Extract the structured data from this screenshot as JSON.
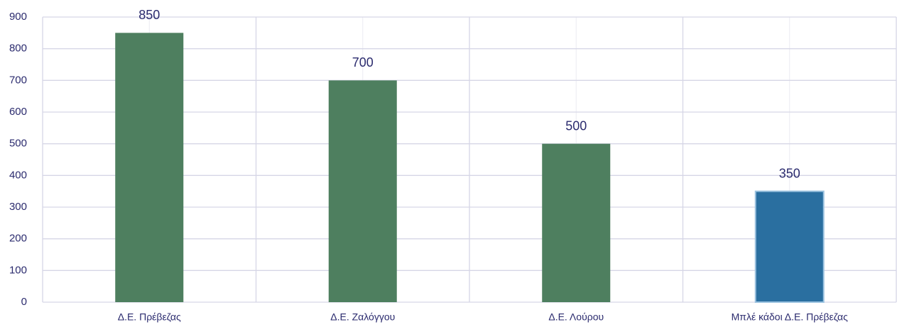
{
  "chart_data": {
    "type": "bar",
    "categories": [
      "Δ.Ε. Πρέβεζας",
      "Δ.Ε. Ζαλόγγου",
      "Δ.Ε. Λούρου",
      "Μπλέ κάδοι Δ.Ε. Πρέβεζας"
    ],
    "values": [
      850,
      700,
      500,
      350
    ],
    "colors": [
      "#4e7f5f",
      "#4e7f5f",
      "#4e7f5f",
      "#2a6fa0"
    ],
    "ylim": [
      0,
      900
    ],
    "yticks": [
      0,
      100,
      200,
      300,
      400,
      500,
      600,
      700,
      800,
      900
    ],
    "grid": true
  }
}
